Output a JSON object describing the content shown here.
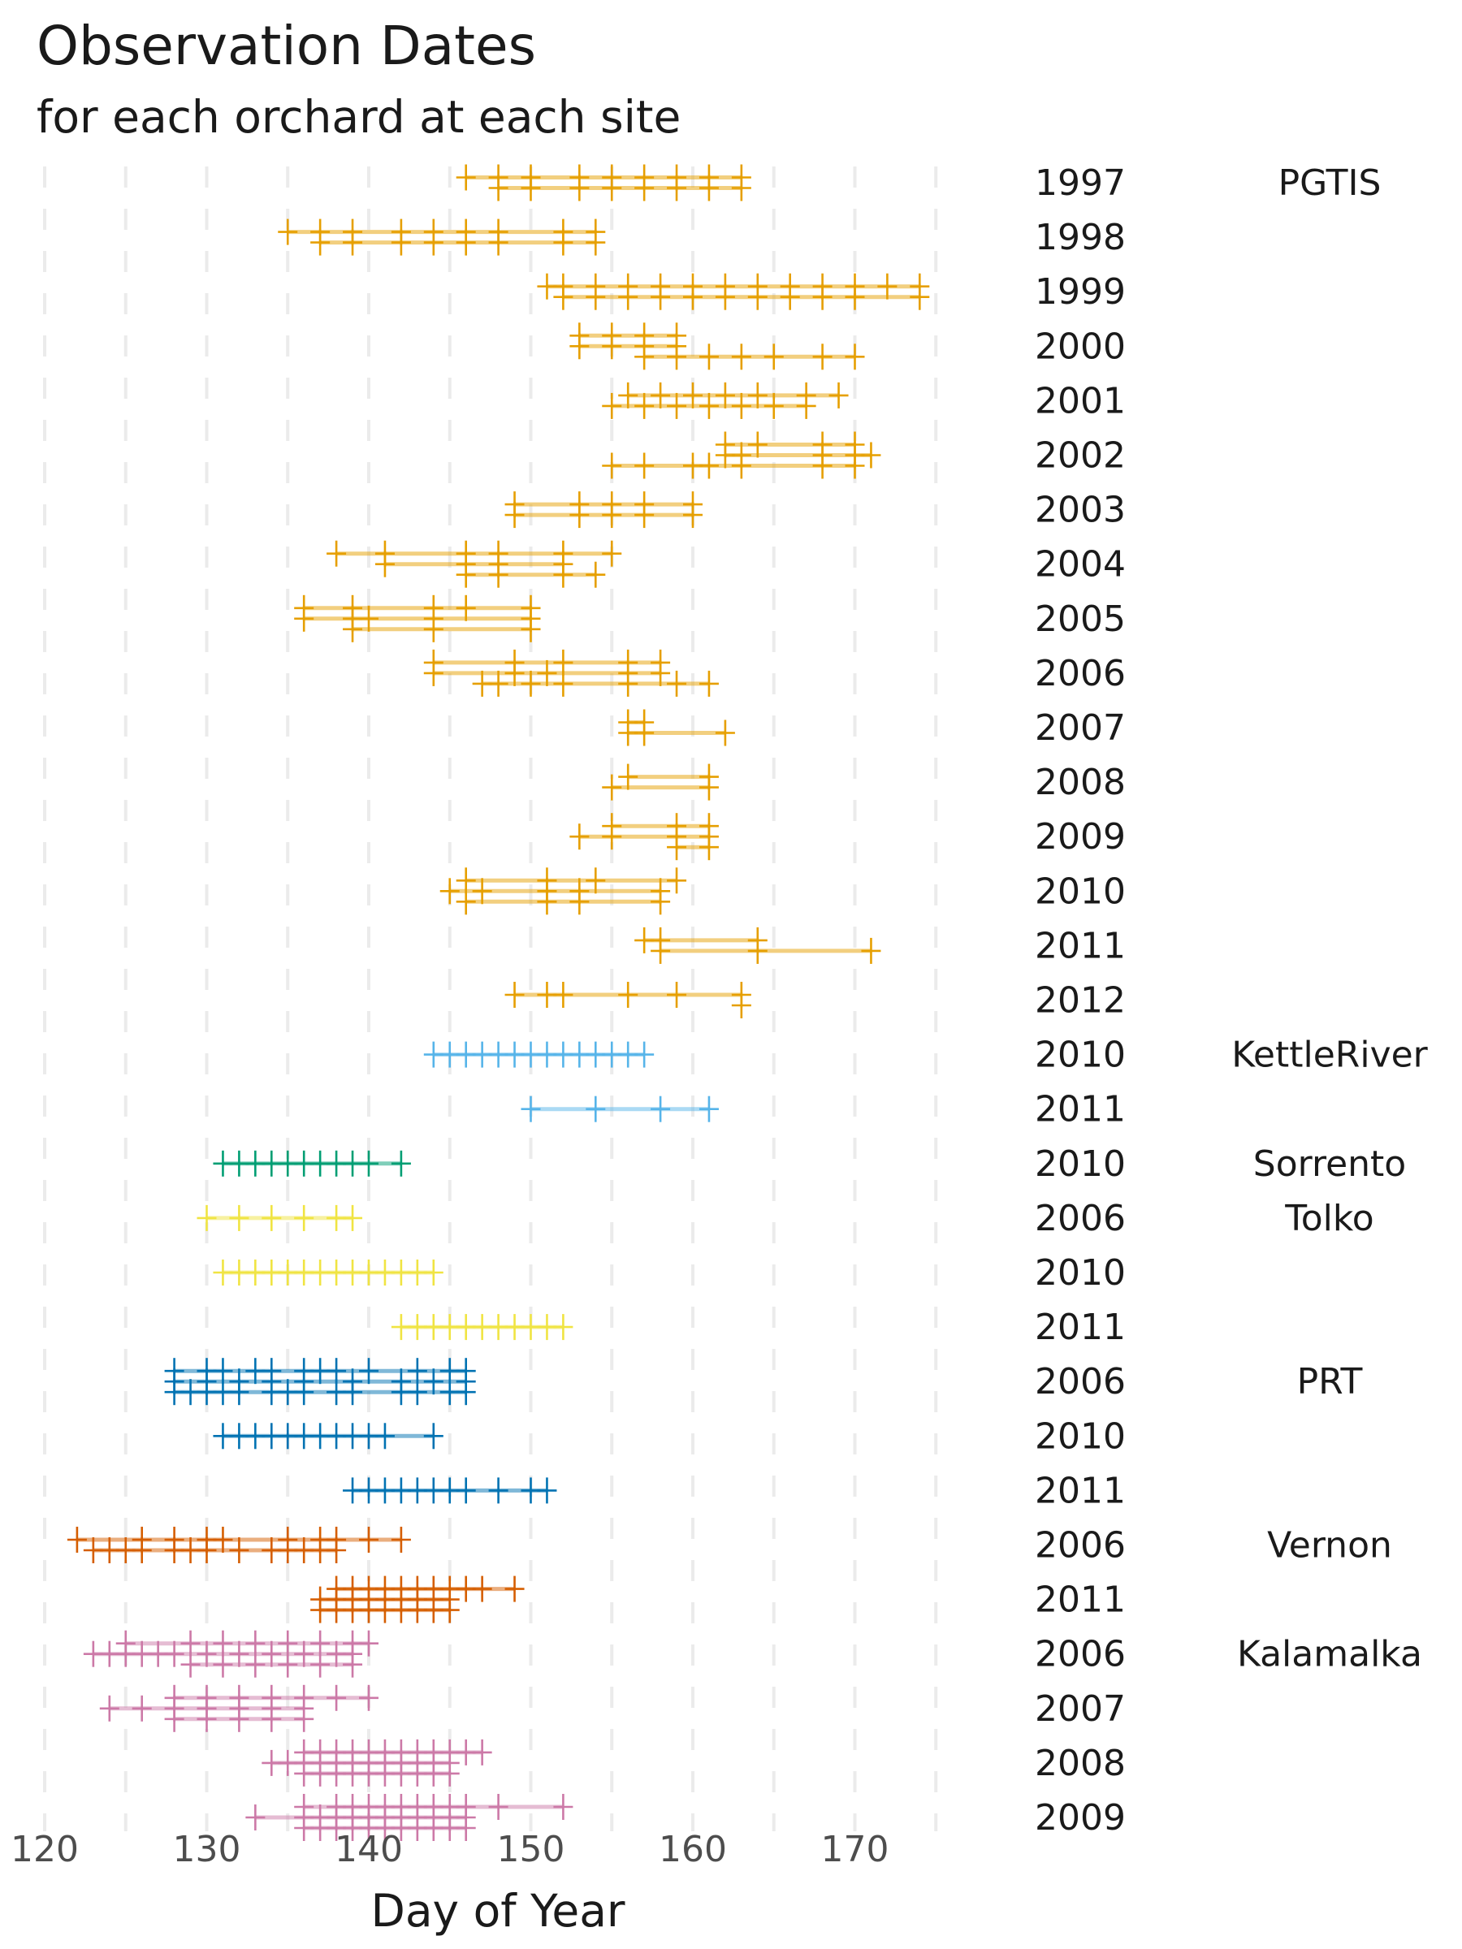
{
  "chart_data": {
    "type": "scatter",
    "title": "Observation Dates",
    "subtitle": "for each orchard at each site",
    "xlabel": "Day of Year",
    "ylabel": "",
    "xlim": [
      119,
      177
    ],
    "xticks": [
      120,
      130,
      140,
      150,
      160,
      170
    ],
    "grid": true,
    "legend": "none",
    "marker": "plus",
    "rows": [
      {
        "site": "PGTIS",
        "year": "1997",
        "color": "#E69F00",
        "lines": [
          [
            146,
            148,
            150,
            153,
            155,
            157,
            159,
            161,
            163
          ],
          [
            148,
            150,
            153,
            155,
            157,
            159,
            161,
            163
          ]
        ]
      },
      {
        "site": "",
        "year": "1998",
        "color": "#E69F00",
        "lines": [
          [
            135,
            137,
            139,
            142,
            144,
            146,
            148,
            152,
            154
          ],
          [
            137,
            139,
            142,
            144,
            146,
            148,
            152,
            154
          ]
        ]
      },
      {
        "site": "",
        "year": "1999",
        "color": "#E69F00",
        "lines": [
          [
            151,
            152,
            154,
            156,
            158,
            160,
            162,
            164,
            166,
            168,
            170,
            172,
            174
          ],
          [
            152,
            154,
            156,
            158,
            160,
            162,
            164,
            166,
            168,
            170,
            174
          ]
        ]
      },
      {
        "site": "",
        "year": "2000",
        "color": "#E69F00",
        "lines": [
          [
            153,
            155,
            157,
            159
          ],
          [
            153,
            155,
            157,
            159
          ],
          [
            157,
            159,
            161,
            163,
            165,
            168,
            170
          ]
        ]
      },
      {
        "site": "",
        "year": "2001",
        "color": "#E69F00",
        "lines": [
          [
            156,
            158,
            160,
            162,
            164,
            167,
            169
          ],
          [
            155,
            157,
            159,
            161,
            163,
            165,
            167
          ]
        ]
      },
      {
        "site": "",
        "year": "2002",
        "color": "#E69F00",
        "lines": [
          [
            162,
            164,
            168,
            170
          ],
          [
            162,
            163,
            168,
            170,
            171
          ],
          [
            155,
            157,
            160,
            161,
            163,
            168,
            170
          ]
        ]
      },
      {
        "site": "",
        "year": "2003",
        "color": "#E69F00",
        "lines": [
          [
            149,
            153,
            155,
            157,
            160
          ],
          [
            149,
            153,
            155,
            157,
            160
          ]
        ]
      },
      {
        "site": "",
        "year": "2004",
        "color": "#E69F00",
        "lines": [
          [
            138,
            141,
            146,
            148,
            152,
            155
          ],
          [
            141,
            146,
            148,
            152
          ],
          [
            146,
            148,
            152,
            154
          ]
        ]
      },
      {
        "site": "",
        "year": "2005",
        "color": "#E69F00",
        "lines": [
          [
            136,
            139,
            144,
            146,
            150
          ],
          [
            136,
            139,
            140,
            144,
            150
          ],
          [
            139,
            144,
            150
          ]
        ]
      },
      {
        "site": "",
        "year": "2006",
        "color": "#E69F00",
        "lines": [
          [
            144,
            149,
            152,
            156,
            158
          ],
          [
            144,
            149,
            151,
            156,
            158
          ],
          [
            147,
            148,
            150,
            152,
            156,
            159,
            161
          ]
        ]
      },
      {
        "site": "",
        "year": "2007",
        "color": "#E69F00",
        "lines": [
          [
            156,
            157
          ],
          [
            156,
            157,
            162
          ]
        ]
      },
      {
        "site": "",
        "year": "2008",
        "color": "#E69F00",
        "lines": [
          [
            156,
            161
          ],
          [
            155,
            161
          ]
        ]
      },
      {
        "site": "",
        "year": "2009",
        "color": "#E69F00",
        "lines": [
          [
            155,
            159,
            161
          ],
          [
            153,
            155,
            159,
            161
          ],
          [
            159,
            161
          ]
        ]
      },
      {
        "site": "",
        "year": "2010",
        "color": "#E69F00",
        "lines": [
          [
            146,
            151,
            154,
            159
          ],
          [
            145,
            147,
            151,
            153,
            158
          ],
          [
            146,
            151,
            153,
            158
          ]
        ]
      },
      {
        "site": "",
        "year": "2011",
        "color": "#E69F00",
        "lines": [
          [
            157,
            158,
            164
          ],
          [
            158,
            164,
            171
          ]
        ]
      },
      {
        "site": "",
        "year": "2012",
        "color": "#E69F00",
        "lines": [
          [
            149,
            151,
            152,
            156,
            159,
            163
          ],
          [
            163
          ]
        ]
      },
      {
        "site": "KettleRiver",
        "year": "2010",
        "color": "#56B4E9",
        "lines": [
          [
            144,
            145,
            146,
            147,
            148,
            149,
            150,
            151,
            152,
            153,
            154,
            155,
            156,
            157
          ]
        ]
      },
      {
        "site": "",
        "year": "2011",
        "color": "#56B4E9",
        "lines": [
          [
            150,
            154,
            158,
            161
          ]
        ]
      },
      {
        "site": "Sorrento",
        "year": "2010",
        "color": "#009E73",
        "lines": [
          [
            131,
            132,
            133,
            134,
            135,
            136,
            137,
            138,
            139,
            140,
            142
          ]
        ]
      },
      {
        "site": "Tolko",
        "year": "2006",
        "color": "#F0E442",
        "lines": [
          [
            130,
            132,
            134,
            136,
            138,
            139
          ]
        ]
      },
      {
        "site": "",
        "year": "2010",
        "color": "#F0E442",
        "lines": [
          [
            131,
            132,
            133,
            134,
            135,
            136,
            137,
            138,
            139,
            140,
            141,
            142,
            143,
            144
          ]
        ]
      },
      {
        "site": "",
        "year": "2011",
        "color": "#F0E442",
        "lines": [
          [
            142,
            143,
            144,
            145,
            146,
            147,
            148,
            149,
            150,
            151,
            152
          ]
        ]
      },
      {
        "site": "PRT",
        "year": "2006",
        "color": "#0072B2",
        "lines": [
          [
            128,
            130,
            131,
            133,
            134,
            136,
            137,
            138,
            140,
            143,
            145,
            146
          ],
          [
            128,
            130,
            132,
            134,
            136,
            139,
            142,
            144,
            146
          ],
          [
            128,
            129,
            130,
            131,
            132,
            134,
            135,
            136,
            138,
            139,
            142,
            143,
            145,
            146
          ]
        ]
      },
      {
        "site": "",
        "year": "2010",
        "color": "#0072B2",
        "lines": [
          [
            131,
            132,
            133,
            134,
            135,
            136,
            137,
            138,
            139,
            140,
            141,
            144
          ]
        ]
      },
      {
        "site": "",
        "year": "2011",
        "color": "#0072B2",
        "lines": [
          [
            139,
            140,
            141,
            142,
            143,
            144,
            145,
            146,
            148,
            150,
            151
          ]
        ]
      },
      {
        "site": "Vernon",
        "year": "2006",
        "color": "#D55E00",
        "lines": [
          [
            122,
            126,
            128,
            130,
            131,
            135,
            137,
            138,
            140,
            142
          ],
          [
            123,
            124,
            125,
            126,
            128,
            129,
            130,
            132,
            134,
            135,
            136,
            137,
            138
          ]
        ]
      },
      {
        "site": "",
        "year": "2011",
        "color": "#D55E00",
        "lines": [
          [
            138,
            139,
            140,
            141,
            142,
            143,
            144,
            145,
            146,
            147,
            149
          ],
          [
            137,
            138,
            139,
            140,
            141,
            142,
            143,
            144,
            145
          ],
          [
            137,
            138,
            139,
            140,
            141,
            142,
            143,
            144,
            145
          ]
        ]
      },
      {
        "site": "Kalamalka",
        "year": "2006",
        "color": "#CC79A7",
        "lines": [
          [
            125,
            129,
            131,
            133,
            135,
            137,
            139,
            140
          ],
          [
            123,
            124,
            125,
            126,
            127,
            128,
            130,
            132,
            134,
            136,
            138,
            139
          ],
          [
            129,
            131,
            133,
            135,
            137,
            139
          ]
        ]
      },
      {
        "site": "",
        "year": "2007",
        "color": "#CC79A7",
        "lines": [
          [
            128,
            130,
            132,
            134,
            136,
            138,
            140
          ],
          [
            124,
            126,
            128,
            130,
            132,
            134,
            136
          ],
          [
            128,
            130,
            132,
            134,
            136
          ]
        ]
      },
      {
        "site": "",
        "year": "2008",
        "color": "#CC79A7",
        "lines": [
          [
            136,
            137,
            138,
            139,
            140,
            141,
            142,
            143,
            144,
            145,
            146,
            147
          ],
          [
            134,
            135,
            136,
            137,
            138,
            139,
            140,
            141,
            142,
            143,
            144,
            145
          ],
          [
            136,
            137,
            138,
            139,
            140,
            141,
            142,
            143,
            144,
            145
          ]
        ]
      },
      {
        "site": "",
        "year": "2009",
        "color": "#CC79A7",
        "lines": [
          [
            136,
            138,
            139,
            140,
            141,
            142,
            143,
            144,
            145,
            146,
            148,
            152
          ],
          [
            133,
            136,
            137,
            138,
            139,
            140,
            141,
            142,
            143,
            144,
            145,
            146
          ],
          [
            136,
            137,
            138,
            139,
            140,
            141,
            142,
            143,
            144,
            145,
            146
          ]
        ]
      }
    ]
  }
}
